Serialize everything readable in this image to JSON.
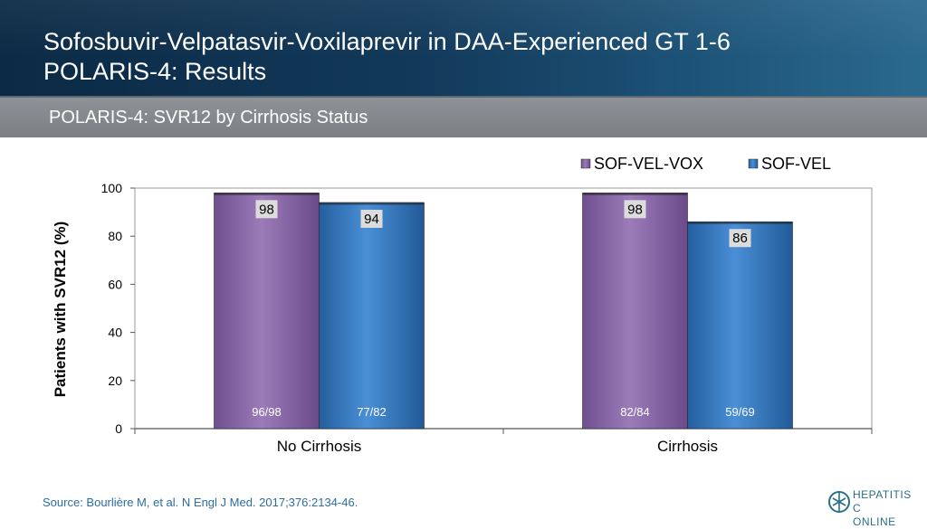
{
  "header": {
    "title_line1": "Sofosbuvir-Velpatasvir-Voxilaprevir in DAA-Experienced GT 1-6",
    "title_line2": "POLARIS-4: Results"
  },
  "subheader": {
    "title": "POLARIS-4: SVR12 by Cirrhosis Status"
  },
  "chart_data": {
    "type": "bar",
    "categories": [
      "No Cirrhosis",
      "Cirrhosis"
    ],
    "series": [
      {
        "name": "SOF-VEL-VOX",
        "values": [
          98,
          98
        ],
        "counts": [
          "96/98",
          "82/84"
        ],
        "color": "#8a6aa6"
      },
      {
        "name": "SOF-VEL",
        "values": [
          94,
          86
        ],
        "counts": [
          "77/82",
          "59/69"
        ],
        "color": "#3a7cc4"
      }
    ],
    "ylabel": "Patients with SVR12 (%)",
    "xlabel": "",
    "ylim": [
      0,
      100
    ],
    "yticks": [
      0,
      20,
      40,
      60,
      80,
      100
    ],
    "legend": "top-right",
    "grid": false
  },
  "footer": {
    "source": "Source: Bourlière M, et al. N Engl J Med. 2017;376:2134-46.",
    "logo_line1": "HEPATITIS C",
    "logo_line2": "ONLINE",
    "logo_icon": "hepatitis-c-online-logo-icon"
  }
}
